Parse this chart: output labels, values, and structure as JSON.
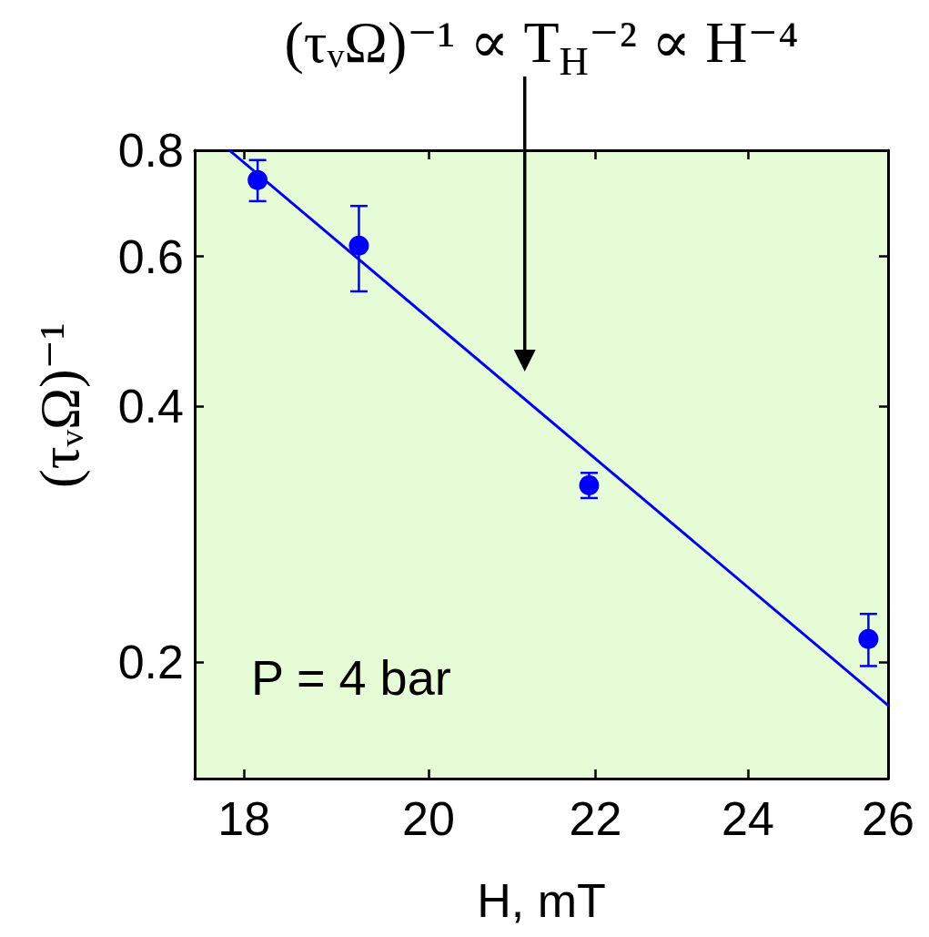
{
  "chart_data": {
    "type": "scatter",
    "xlabel": "H, mT",
    "ylabel": "(τᵥΩ)⁻¹",
    "annotations": [
      "(τᵥΩ)⁻¹ ∝ T$_{H}$⁻² ∝ H⁻⁴",
      "P = 4 bar"
    ],
    "series": [
      {
        "type": "scatter",
        "x": [
          18.14,
          19.22,
          21.92,
          25.71
        ],
        "values": [
          0.738,
          0.618,
          0.323,
          0.213
        ],
        "errors": [
          [
            0.697,
            0.779
          ],
          [
            0.546,
            0.688
          ],
          [
            0.312,
            0.334
          ],
          [
            0.198,
            0.228
          ]
        ],
        "color": "#0000ff"
      },
      {
        "type": "line",
        "x": [
          17.85,
          26
        ],
        "values": [
          0.8,
          0.178
        ],
        "color": "#0000ff",
        "marker": "none"
      }
    ],
    "xlim": [
      17.5,
      26
    ],
    "ylim": [
      0.146,
      0.8
    ],
    "xticks": [
      18,
      20,
      22,
      24,
      26
    ],
    "yticks": [
      0.2,
      0.4,
      0.6,
      0.8
    ],
    "log": "xy",
    "marker": "circle"
  }
}
